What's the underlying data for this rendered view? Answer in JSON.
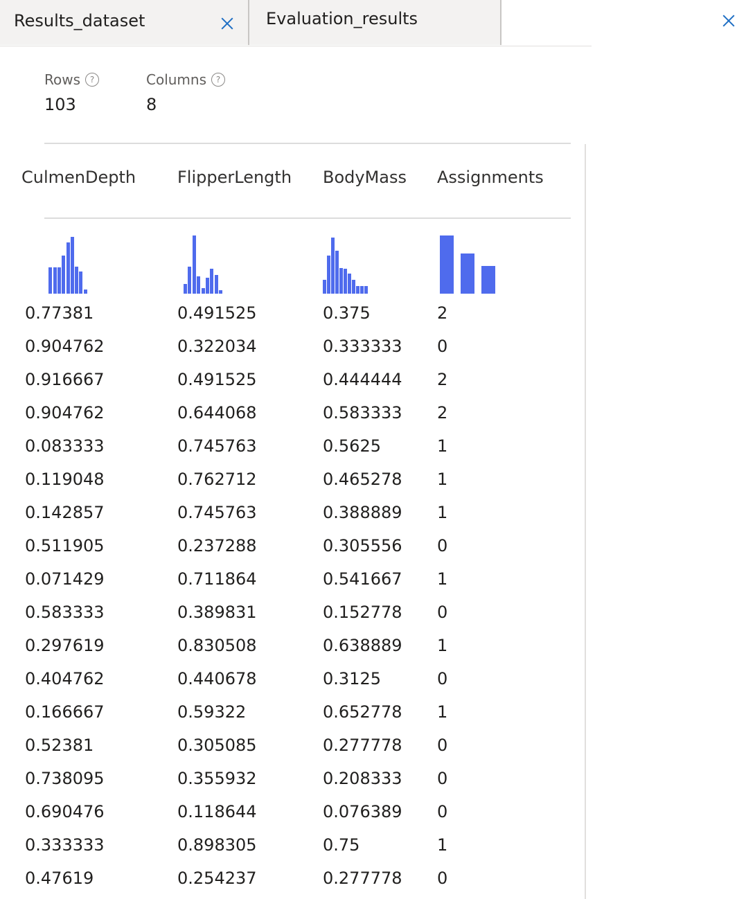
{
  "tabs": [
    {
      "label": "Results_dataset"
    },
    {
      "label": "Evaluation_results"
    }
  ],
  "stats": {
    "rows_label": "Rows",
    "rows_value": "103",
    "columns_label": "Columns",
    "columns_value": "8",
    "help_glyph": "?"
  },
  "columns": [
    "CulmenDepth",
    "FlipperLength",
    "BodyMass",
    "Assignments"
  ],
  "histograms": [
    [
      0,
      0.45,
      0.45,
      0.45,
      0.66,
      0.88,
      0.98,
      0.46,
      0.38,
      0.07
    ],
    [
      0.17,
      0.46,
      1.0,
      0.3,
      0.1,
      0.27,
      0.43,
      0.32,
      0.06
    ],
    [
      0.24,
      0.66,
      0.96,
      0.74,
      0.44,
      0.43,
      0.35,
      0.24,
      0.13,
      0.13,
      0.13
    ],
    [
      1.0,
      0.69,
      0.48
    ]
  ],
  "accent_color": "#4f6bed",
  "rows": [
    [
      "0.77381",
      "0.491525",
      "0.375",
      "2"
    ],
    [
      "0.904762",
      "0.322034",
      "0.333333",
      "0"
    ],
    [
      "0.916667",
      "0.491525",
      "0.444444",
      "2"
    ],
    [
      "0.904762",
      "0.644068",
      "0.583333",
      "2"
    ],
    [
      "0.083333",
      "0.745763",
      "0.5625",
      "1"
    ],
    [
      "0.119048",
      "0.762712",
      "0.465278",
      "1"
    ],
    [
      "0.142857",
      "0.745763",
      "0.388889",
      "1"
    ],
    [
      "0.511905",
      "0.237288",
      "0.305556",
      "0"
    ],
    [
      "0.071429",
      "0.711864",
      "0.541667",
      "1"
    ],
    [
      "0.583333",
      "0.389831",
      "0.152778",
      "0"
    ],
    [
      "0.297619",
      "0.830508",
      "0.638889",
      "1"
    ],
    [
      "0.404762",
      "0.440678",
      "0.3125",
      "0"
    ],
    [
      "0.166667",
      "0.59322",
      "0.652778",
      "1"
    ],
    [
      "0.52381",
      "0.305085",
      "0.277778",
      "0"
    ],
    [
      "0.738095",
      "0.355932",
      "0.208333",
      "0"
    ],
    [
      "0.690476",
      "0.118644",
      "0.076389",
      "0"
    ],
    [
      "0.333333",
      "0.898305",
      "0.75",
      "1"
    ],
    [
      "0.47619",
      "0.254237",
      "0.277778",
      "0"
    ]
  ]
}
